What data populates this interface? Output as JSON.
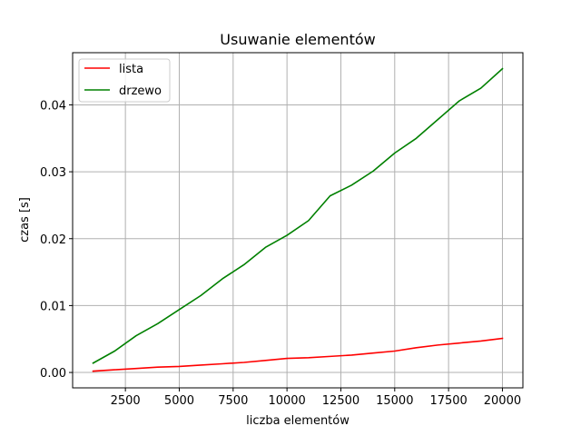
{
  "chart_data": {
    "type": "line",
    "title": "Usuwanie elementów",
    "xlabel": "liczba elementów",
    "ylabel": "czas [s]",
    "xlim": [
      50,
      20950
    ],
    "ylim": [
      -0.0023,
      0.0478
    ],
    "xticks": [
      2500,
      5000,
      7500,
      10000,
      12500,
      15000,
      17500,
      20000
    ],
    "xtick_labels": [
      "2500",
      "5000",
      "7500",
      "10000",
      "12500",
      "15000",
      "17500",
      "20000"
    ],
    "yticks": [
      0.0,
      0.01,
      0.02,
      0.03,
      0.04
    ],
    "ytick_labels": [
      "0.00",
      "0.01",
      "0.02",
      "0.03",
      "0.04"
    ],
    "grid": true,
    "legend_position": "top-left",
    "x": [
      1000,
      2000,
      3000,
      4000,
      5000,
      6000,
      7000,
      8000,
      9000,
      10000,
      11000,
      12000,
      13000,
      14000,
      15000,
      16000,
      17000,
      18000,
      19000,
      20000
    ],
    "series": [
      {
        "name": "lista",
        "color": "#ff0000",
        "values": [
          0.0002,
          0.0004,
          0.0006,
          0.0008,
          0.0009,
          0.0011,
          0.0013,
          0.0015,
          0.0018,
          0.0021,
          0.0022,
          0.0024,
          0.0026,
          0.0029,
          0.0032,
          0.0037,
          0.0041,
          0.0044,
          0.0047,
          0.0051
        ]
      },
      {
        "name": "drzewo",
        "color": "#008000",
        "values": [
          0.0014,
          0.0032,
          0.0055,
          0.0073,
          0.0094,
          0.0115,
          0.014,
          0.0161,
          0.0187,
          0.0205,
          0.0227,
          0.0264,
          0.028,
          0.0301,
          0.0328,
          0.035,
          0.0378,
          0.0406,
          0.0425,
          0.0454
        ]
      }
    ]
  }
}
